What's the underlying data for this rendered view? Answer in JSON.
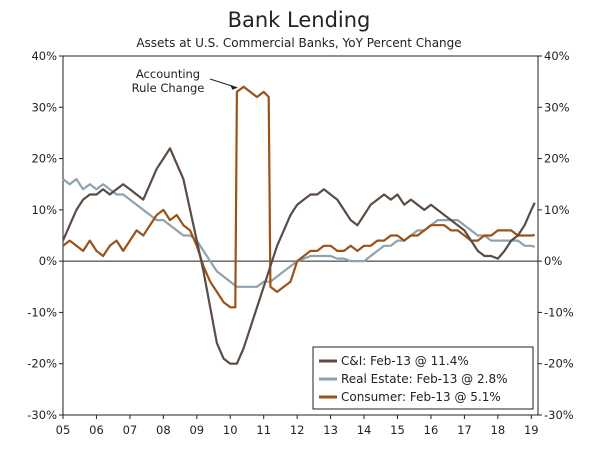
{
  "chart_data": {
    "type": "line",
    "title": "Bank Lending",
    "subtitle": "Assets at U.S. Commercial Banks, YoY Percent Change",
    "xlabel": "",
    "ylabel": "",
    "ylim": [
      -30,
      40
    ],
    "xlim": [
      2005.0,
      2019.2
    ],
    "y_ticks": [
      "40%",
      "30%",
      "20%",
      "10%",
      "0%",
      "-10%",
      "-20%",
      "-30%"
    ],
    "y_tick_values": [
      40,
      30,
      20,
      10,
      0,
      -10,
      -20,
      -30
    ],
    "x_ticks": [
      "05",
      "06",
      "07",
      "08",
      "09",
      "10",
      "11",
      "12",
      "13",
      "14",
      "15",
      "16",
      "17",
      "18",
      "19"
    ],
    "grid": false,
    "legend_position": "bottom-right",
    "annotation": {
      "lines": [
        "Accounting",
        "Rule Change"
      ],
      "x": 2010.3,
      "y": 34
    },
    "series": [
      {
        "name": "C&I: Feb-13 @ 11.4%",
        "color": "#5b4c44",
        "points": [
          [
            2005.0,
            4
          ],
          [
            2005.2,
            7
          ],
          [
            2005.4,
            10
          ],
          [
            2005.6,
            12
          ],
          [
            2005.8,
            13
          ],
          [
            2006.0,
            13
          ],
          [
            2006.2,
            14
          ],
          [
            2006.4,
            13
          ],
          [
            2006.6,
            14
          ],
          [
            2006.8,
            15
          ],
          [
            2007.0,
            14
          ],
          [
            2007.2,
            13
          ],
          [
            2007.4,
            12
          ],
          [
            2007.6,
            15
          ],
          [
            2007.8,
            18
          ],
          [
            2008.0,
            20
          ],
          [
            2008.2,
            22
          ],
          [
            2008.4,
            19
          ],
          [
            2008.6,
            16
          ],
          [
            2008.8,
            10
          ],
          [
            2009.0,
            4
          ],
          [
            2009.2,
            -2
          ],
          [
            2009.4,
            -9
          ],
          [
            2009.6,
            -16
          ],
          [
            2009.8,
            -19
          ],
          [
            2010.0,
            -20
          ],
          [
            2010.2,
            -20
          ],
          [
            2010.4,
            -17
          ],
          [
            2010.6,
            -13
          ],
          [
            2010.8,
            -9
          ],
          [
            2011.0,
            -5
          ],
          [
            2011.2,
            -1
          ],
          [
            2011.4,
            3
          ],
          [
            2011.6,
            6
          ],
          [
            2011.8,
            9
          ],
          [
            2012.0,
            11
          ],
          [
            2012.2,
            12
          ],
          [
            2012.4,
            13
          ],
          [
            2012.6,
            13
          ],
          [
            2012.8,
            14
          ],
          [
            2013.0,
            13
          ],
          [
            2013.2,
            12
          ],
          [
            2013.4,
            10
          ],
          [
            2013.6,
            8
          ],
          [
            2013.8,
            7
          ],
          [
            2014.0,
            9
          ],
          [
            2014.2,
            11
          ],
          [
            2014.4,
            12
          ],
          [
            2014.6,
            13
          ],
          [
            2014.8,
            12
          ],
          [
            2015.0,
            13
          ],
          [
            2015.2,
            11
          ],
          [
            2015.4,
            12
          ],
          [
            2015.6,
            11
          ],
          [
            2015.8,
            10
          ],
          [
            2016.0,
            11
          ],
          [
            2016.2,
            10
          ],
          [
            2016.4,
            9
          ],
          [
            2016.6,
            8
          ],
          [
            2016.8,
            7
          ],
          [
            2017.0,
            6
          ],
          [
            2017.2,
            4
          ],
          [
            2017.4,
            2
          ],
          [
            2017.6,
            1
          ],
          [
            2017.8,
            1
          ],
          [
            2018.0,
            0.5
          ],
          [
            2018.2,
            2
          ],
          [
            2018.4,
            4
          ],
          [
            2018.6,
            5
          ],
          [
            2018.8,
            7
          ],
          [
            2019.0,
            10
          ],
          [
            2019.1,
            11.4
          ]
        ]
      },
      {
        "name": "Real Estate: Feb-13 @ 2.8%",
        "color": "#8fa2b0",
        "points": [
          [
            2005.0,
            16
          ],
          [
            2005.2,
            15
          ],
          [
            2005.4,
            16
          ],
          [
            2005.6,
            14
          ],
          [
            2005.8,
            15
          ],
          [
            2006.0,
            14
          ],
          [
            2006.2,
            15
          ],
          [
            2006.4,
            14
          ],
          [
            2006.6,
            13
          ],
          [
            2006.8,
            13
          ],
          [
            2007.0,
            12
          ],
          [
            2007.2,
            11
          ],
          [
            2007.4,
            10
          ],
          [
            2007.6,
            9
          ],
          [
            2007.8,
            8
          ],
          [
            2008.0,
            8
          ],
          [
            2008.2,
            7
          ],
          [
            2008.4,
            6
          ],
          [
            2008.6,
            5
          ],
          [
            2008.8,
            5
          ],
          [
            2009.0,
            4
          ],
          [
            2009.2,
            2
          ],
          [
            2009.4,
            0
          ],
          [
            2009.6,
            -2
          ],
          [
            2009.8,
            -3
          ],
          [
            2010.0,
            -4
          ],
          [
            2010.2,
            -5
          ],
          [
            2010.4,
            -5
          ],
          [
            2010.6,
            -5
          ],
          [
            2010.8,
            -5
          ],
          [
            2011.0,
            -4
          ],
          [
            2011.2,
            -4
          ],
          [
            2011.4,
            -3
          ],
          [
            2011.6,
            -2
          ],
          [
            2011.8,
            -1
          ],
          [
            2012.0,
            0
          ],
          [
            2012.2,
            0.5
          ],
          [
            2012.4,
            1
          ],
          [
            2012.6,
            1
          ],
          [
            2012.8,
            1
          ],
          [
            2013.0,
            1
          ],
          [
            2013.2,
            0.5
          ],
          [
            2013.4,
            0.5
          ],
          [
            2013.6,
            0
          ],
          [
            2013.8,
            0
          ],
          [
            2014.0,
            0
          ],
          [
            2014.2,
            1
          ],
          [
            2014.4,
            2
          ],
          [
            2014.6,
            3
          ],
          [
            2014.8,
            3
          ],
          [
            2015.0,
            4
          ],
          [
            2015.2,
            4
          ],
          [
            2015.4,
            5
          ],
          [
            2015.6,
            6
          ],
          [
            2015.8,
            6
          ],
          [
            2016.0,
            7
          ],
          [
            2016.2,
            8
          ],
          [
            2016.4,
            8
          ],
          [
            2016.6,
            8
          ],
          [
            2016.8,
            8
          ],
          [
            2017.0,
            7
          ],
          [
            2017.2,
            6
          ],
          [
            2017.4,
            5
          ],
          [
            2017.6,
            5
          ],
          [
            2017.8,
            4
          ],
          [
            2018.0,
            4
          ],
          [
            2018.2,
            4
          ],
          [
            2018.4,
            4
          ],
          [
            2018.6,
            4
          ],
          [
            2018.8,
            3
          ],
          [
            2019.0,
            3
          ],
          [
            2019.1,
            2.8
          ]
        ]
      },
      {
        "name": "Consumer: Feb-13 @ 5.1%",
        "color": "#9a5218",
        "points": [
          [
            2005.0,
            3
          ],
          [
            2005.2,
            4
          ],
          [
            2005.4,
            3
          ],
          [
            2005.6,
            2
          ],
          [
            2005.8,
            4
          ],
          [
            2006.0,
            2
          ],
          [
            2006.2,
            1
          ],
          [
            2006.4,
            3
          ],
          [
            2006.6,
            4
          ],
          [
            2006.8,
            2
          ],
          [
            2007.0,
            4
          ],
          [
            2007.2,
            6
          ],
          [
            2007.4,
            5
          ],
          [
            2007.6,
            7
          ],
          [
            2007.8,
            9
          ],
          [
            2008.0,
            10
          ],
          [
            2008.2,
            8
          ],
          [
            2008.4,
            9
          ],
          [
            2008.6,
            7
          ],
          [
            2008.8,
            6
          ],
          [
            2009.0,
            3
          ],
          [
            2009.2,
            -1
          ],
          [
            2009.4,
            -4
          ],
          [
            2009.6,
            -6
          ],
          [
            2009.8,
            -8
          ],
          [
            2010.0,
            -9
          ],
          [
            2010.15,
            -9
          ],
          [
            2010.2,
            33
          ],
          [
            2010.4,
            34
          ],
          [
            2010.6,
            33
          ],
          [
            2010.8,
            32
          ],
          [
            2011.0,
            33
          ],
          [
            2011.15,
            32
          ],
          [
            2011.2,
            -5
          ],
          [
            2011.4,
            -6
          ],
          [
            2011.6,
            -5
          ],
          [
            2011.8,
            -4
          ],
          [
            2012.0,
            0
          ],
          [
            2012.2,
            1
          ],
          [
            2012.4,
            2
          ],
          [
            2012.6,
            2
          ],
          [
            2012.8,
            3
          ],
          [
            2013.0,
            3
          ],
          [
            2013.2,
            2
          ],
          [
            2013.4,
            2
          ],
          [
            2013.6,
            3
          ],
          [
            2013.8,
            2
          ],
          [
            2014.0,
            3
          ],
          [
            2014.2,
            3
          ],
          [
            2014.4,
            4
          ],
          [
            2014.6,
            4
          ],
          [
            2014.8,
            5
          ],
          [
            2015.0,
            5
          ],
          [
            2015.2,
            4
          ],
          [
            2015.4,
            5
          ],
          [
            2015.6,
            5
          ],
          [
            2015.8,
            6
          ],
          [
            2016.0,
            7
          ],
          [
            2016.2,
            7
          ],
          [
            2016.4,
            7
          ],
          [
            2016.6,
            6
          ],
          [
            2016.8,
            6
          ],
          [
            2017.0,
            5
          ],
          [
            2017.2,
            4
          ],
          [
            2017.4,
            4
          ],
          [
            2017.6,
            5
          ],
          [
            2017.8,
            5
          ],
          [
            2018.0,
            6
          ],
          [
            2018.2,
            6
          ],
          [
            2018.4,
            6
          ],
          [
            2018.6,
            5
          ],
          [
            2018.8,
            5
          ],
          [
            2019.0,
            5
          ],
          [
            2019.1,
            5.1
          ]
        ]
      }
    ]
  }
}
